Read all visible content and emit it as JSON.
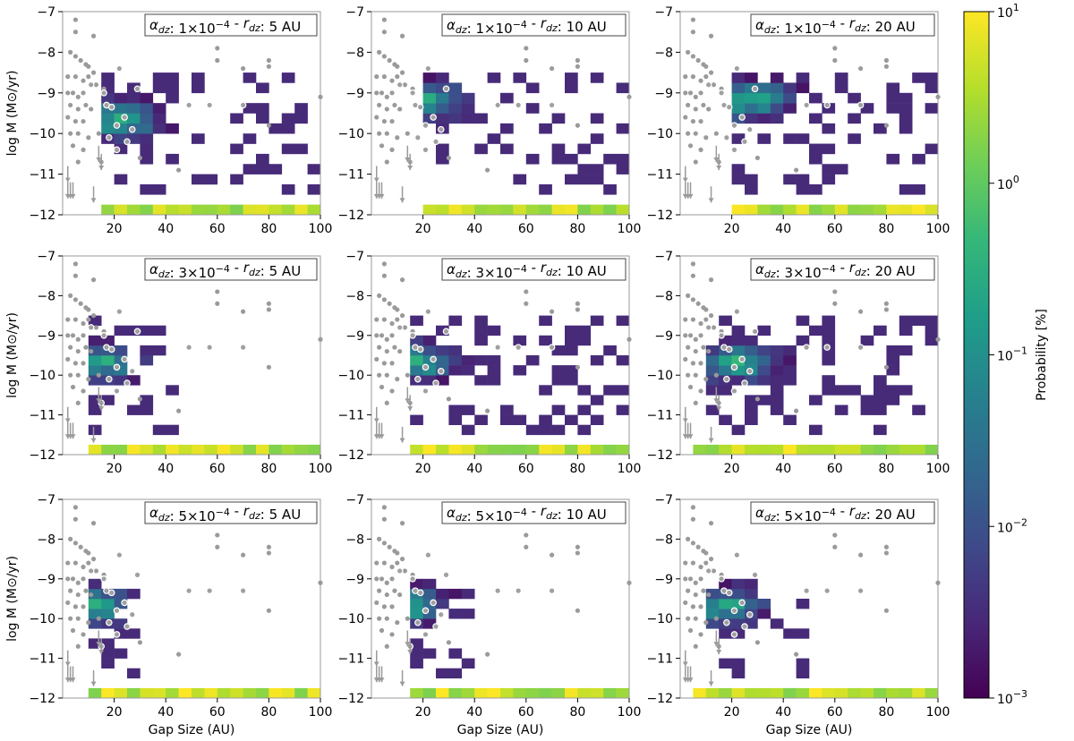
{
  "chart_data": [
    {
      "type": "heatmap",
      "title": "αdz: 1×10^-4 - rdz: 5 AU",
      "alpha_dz": "1×10",
      "alpha_exp": "-4",
      "r_dz": "5 AU",
      "xlim": [
        0,
        100
      ],
      "ylim": [
        -12,
        -7
      ],
      "xlabel": "",
      "ylabel": "log M (M⊙/yr)",
      "gap_max": 100,
      "mdot_hi": -8.5,
      "blob": [
        20,
        -9.8
      ]
    },
    {
      "type": "heatmap",
      "title": "αdz: 1×10^-4 - rdz: 10 AU",
      "alpha_dz": "1×10",
      "alpha_exp": "-4",
      "r_dz": "10 AU",
      "xlim": [
        0,
        100
      ],
      "ylim": [
        -12,
        -7
      ],
      "xlabel": "",
      "ylabel": "",
      "gap_max": 100,
      "mdot_hi": -8.5,
      "blob": [
        18,
        -9.3
      ]
    },
    {
      "type": "heatmap",
      "title": "αdz: 1×10^-4 - rdz: 20 AU",
      "alpha_dz": "1×10",
      "alpha_exp": "-4",
      "r_dz": "20 AU",
      "xlim": [
        0,
        100
      ],
      "ylim": [
        -12,
        -7
      ],
      "xlabel": "",
      "ylabel": "",
      "gap_max": 100,
      "mdot_hi": -8.5,
      "blob": [
        25,
        -9.3
      ]
    },
    {
      "type": "heatmap",
      "title": "αdz: 3×10^-4 - rdz: 5 AU",
      "alpha_dz": "3×10",
      "alpha_exp": "-4",
      "r_dz": "5 AU",
      "xlim": [
        0,
        100
      ],
      "ylim": [
        -12,
        -7
      ],
      "xlabel": "",
      "ylabel": "log M (M⊙/yr)",
      "gap_max": 45,
      "mdot_hi": -8.5,
      "blob": [
        12,
        -9.8
      ]
    },
    {
      "type": "heatmap",
      "title": "αdz: 3×10^-4 - rdz: 10 AU",
      "alpha_dz": "3×10",
      "alpha_exp": "-4",
      "r_dz": "10 AU",
      "xlim": [
        0,
        100
      ],
      "ylim": [
        -12,
        -7
      ],
      "xlabel": "",
      "ylabel": "",
      "gap_max": 100,
      "mdot_hi": -8.5,
      "blob": [
        15,
        -9.8
      ]
    },
    {
      "type": "heatmap",
      "title": "αdz: 3×10^-4 - rdz: 20 AU",
      "alpha_dz": "3×10",
      "alpha_exp": "-4",
      "r_dz": "20 AU",
      "xlim": [
        0,
        100
      ],
      "ylim": [
        -12,
        -7
      ],
      "xlabel": "",
      "ylabel": "",
      "gap_max": 100,
      "mdot_hi": -8.5,
      "blob": [
        20,
        -9.8
      ]
    },
    {
      "type": "heatmap",
      "title": "αdz: 5×10^-4 - rdz: 5 AU",
      "alpha_dz": "5×10",
      "alpha_exp": "-4",
      "r_dz": "5 AU",
      "xlim": [
        0,
        100
      ],
      "ylim": [
        -12,
        -7
      ],
      "xlabel": "Gap Size (AU)",
      "ylabel": "log M (M⊙/yr)",
      "gap_max": 30,
      "mdot_hi": -9,
      "blob": [
        10,
        -9.8
      ]
    },
    {
      "type": "heatmap",
      "title": "αdz: 5×10^-4 - rdz: 10 AU",
      "alpha_dz": "5×10",
      "alpha_exp": "-4",
      "r_dz": "10 AU",
      "xlim": [
        0,
        100
      ],
      "ylim": [
        -12,
        -7
      ],
      "xlabel": "Gap Size (AU)",
      "ylabel": "",
      "gap_max": 40,
      "mdot_hi": -9,
      "blob": [
        12,
        -9.8
      ]
    },
    {
      "type": "heatmap",
      "title": "αdz: 5×10^-4 - rdz: 20 AU",
      "alpha_dz": "5×10",
      "alpha_exp": "-4",
      "r_dz": "20 AU",
      "xlim": [
        0,
        100
      ],
      "ylim": [
        -12,
        -7
      ],
      "xlabel": "Gap Size (AU)",
      "ylabel": "",
      "gap_max": 50,
      "mdot_hi": -9,
      "blob": [
        15,
        -9.8
      ]
    }
  ],
  "colorbar": {
    "label": "Probability [%]",
    "scale": "log",
    "range": [
      0.001,
      10
    ],
    "ticks": [
      {
        "base": "10",
        "exp": "1",
        "value": 10
      },
      {
        "base": "10",
        "exp": "0",
        "value": 1
      },
      {
        "base": "10",
        "exp": "−1",
        "value": 0.1
      },
      {
        "base": "10",
        "exp": "−2",
        "value": 0.01
      },
      {
        "base": "10",
        "exp": "−3",
        "value": 0.001
      }
    ],
    "colormap": "viridis"
  },
  "axes": {
    "x_ticks": [
      "20",
      "40",
      "60",
      "80",
      "100"
    ],
    "x_tick_values": [
      20,
      40,
      60,
      80,
      100
    ],
    "y_ticks": [
      "−7",
      "−8",
      "−9",
      "−10",
      "−11",
      "−12"
    ],
    "y_tick_values": [
      -7,
      -8,
      -9,
      -10,
      -11,
      -12
    ],
    "xlabel": "Gap Size (AU)",
    "ylabel": "log M (M⊙/yr)"
  },
  "observed_points": [
    [
      5,
      -7.2
    ],
    [
      5,
      -7.5
    ],
    [
      12,
      -7.6
    ],
    [
      3,
      -8.0
    ],
    [
      5,
      -8.1
    ],
    [
      7,
      -8.2
    ],
    [
      9,
      -8.3
    ],
    [
      10,
      -8.35
    ],
    [
      12,
      -8.5
    ],
    [
      2,
      -8.6
    ],
    [
      5,
      -8.6
    ],
    [
      8,
      -8.7
    ],
    [
      10,
      -8.6
    ],
    [
      13,
      -8.8
    ],
    [
      16,
      -8.9
    ],
    [
      2,
      -9.0
    ],
    [
      4,
      -9.0
    ],
    [
      6,
      -9.1
    ],
    [
      8,
      -9.0
    ],
    [
      3,
      -9.3
    ],
    [
      6,
      -9.4
    ],
    [
      9,
      -9.3
    ],
    [
      11,
      -9.4
    ],
    [
      2,
      -9.6
    ],
    [
      5,
      -9.7
    ],
    [
      8,
      -9.7
    ],
    [
      3,
      -10.0
    ],
    [
      6,
      -10.0
    ],
    [
      10,
      -10.1
    ],
    [
      14,
      -10.0
    ],
    [
      4,
      -10.3
    ],
    [
      8,
      -10.4
    ],
    [
      6,
      -10.7
    ],
    [
      60,
      -7.9
    ],
    [
      60,
      -8.2
    ],
    [
      80,
      -8.2
    ],
    [
      80,
      -8.35
    ],
    [
      70,
      -8.4
    ],
    [
      100,
      -9.1
    ],
    [
      45,
      -10.9
    ],
    [
      80,
      -9.8
    ],
    [
      30,
      -10.6
    ]
  ],
  "white_points": [
    [
      22,
      -8.4
    ],
    [
      11,
      -8.8
    ],
    [
      16,
      -9.0
    ],
    [
      17,
      -9.3
    ],
    [
      19,
      -9.35
    ],
    [
      29,
      -8.9
    ],
    [
      49,
      -9.3
    ],
    [
      57,
      -9.3
    ],
    [
      24,
      -9.6
    ],
    [
      21,
      -9.8
    ],
    [
      27,
      -9.9
    ],
    [
      25,
      -10.2
    ],
    [
      18,
      -10.1
    ],
    [
      21,
      -10.4
    ],
    [
      15,
      -10.7
    ],
    [
      70,
      -9.3
    ]
  ],
  "upper_limits": [
    [
      2,
      -10.8
    ],
    [
      2,
      -11.2
    ],
    [
      3,
      -11.2
    ],
    [
      4,
      -11.2
    ],
    [
      14,
      -10.3
    ],
    [
      15,
      -10.5
    ],
    [
      12,
      -11.3
    ]
  ]
}
